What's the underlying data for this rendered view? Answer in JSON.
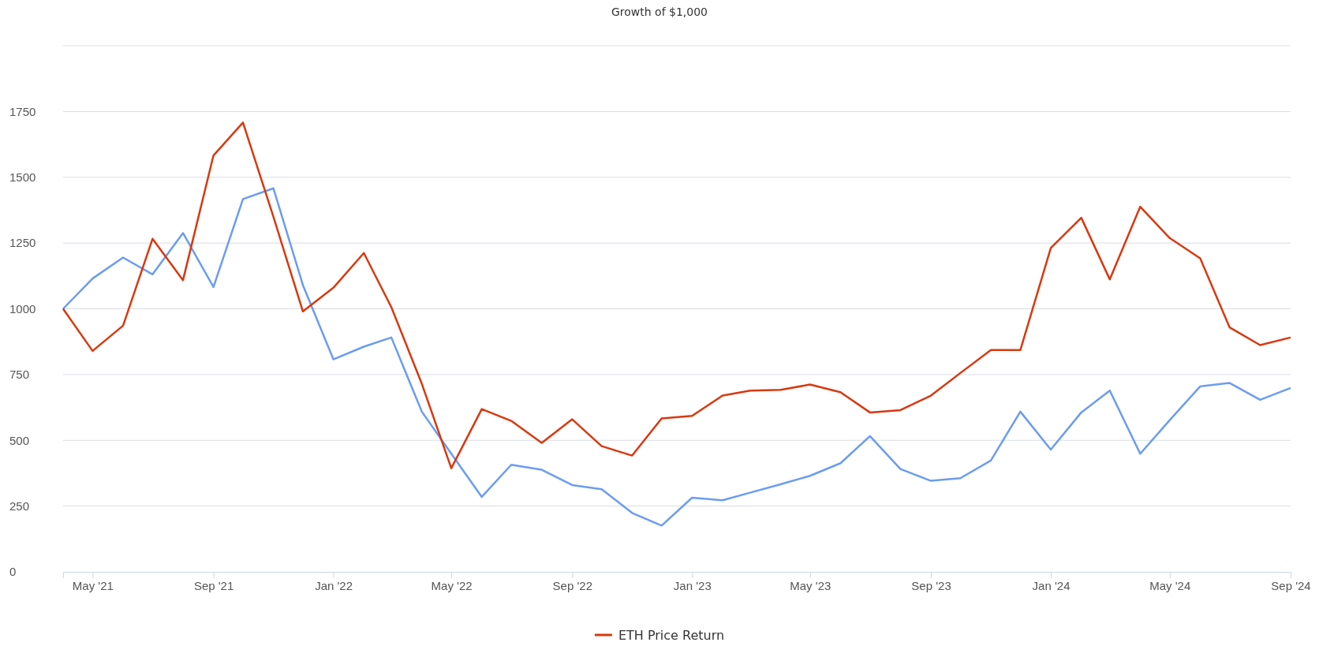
{
  "chart_data": {
    "type": "line",
    "title": "Growth of $1,000",
    "x": [
      "2021-04",
      "2021-05",
      "2021-06",
      "2021-07",
      "2021-08",
      "2021-09",
      "2021-10",
      "2021-11",
      "2021-12",
      "2022-01",
      "2022-02",
      "2022-03",
      "2022-04",
      "2022-05",
      "2022-06",
      "2022-07",
      "2022-08",
      "2022-09",
      "2022-10",
      "2022-11",
      "2022-12",
      "2023-01",
      "2023-02",
      "2023-03",
      "2023-04",
      "2023-05",
      "2023-06",
      "2023-07",
      "2023-08",
      "2023-09",
      "2023-10",
      "2023-11",
      "2023-12",
      "2024-01",
      "2024-02",
      "2024-03",
      "2024-04",
      "2024-05",
      "2024-06",
      "2024-07",
      "2024-08",
      "2024-09"
    ],
    "series": [
      {
        "color": "#6b9cf0",
        "values": [
          1000,
          1115,
          1195,
          1131,
          1288,
          1083,
          1417,
          1458,
          1090,
          808,
          856,
          891,
          609,
          449,
          285,
          407,
          388,
          330,
          314,
          224,
          176,
          282,
          272,
          301,
          333,
          365,
          413,
          516,
          391,
          346,
          356,
          423,
          609,
          465,
          606,
          689,
          449,
          577,
          705,
          718,
          654,
          699
        ]
      },
      {
        "name": "ETH Price Return",
        "color": "#d9380f",
        "values": [
          1000,
          840,
          936,
          1266,
          1109,
          1583,
          1708,
          1350,
          990,
          1080,
          1212,
          1006,
          715,
          394,
          619,
          574,
          490,
          580,
          478,
          442,
          583,
          593,
          670,
          689,
          692,
          712,
          683,
          606,
          615,
          670,
          756,
          843,
          843,
          1231,
          1346,
          1112,
          1388,
          1269,
          1192,
          929,
          862,
          891
        ]
      }
    ],
    "xlim": [
      "2021-04",
      "2024-09"
    ],
    "xticks": [
      {
        "value": "2021-05",
        "label": "May '21"
      },
      {
        "value": "2021-09",
        "label": "Sep '21"
      },
      {
        "value": "2022-01",
        "label": "Jan '22"
      },
      {
        "value": "2022-05",
        "label": "May '22"
      },
      {
        "value": "2022-09",
        "label": "Sep '22"
      },
      {
        "value": "2023-01",
        "label": "Jan '23"
      },
      {
        "value": "2023-05",
        "label": "May '23"
      },
      {
        "value": "2023-09",
        "label": "Sep '23"
      },
      {
        "value": "2024-01",
        "label": "Jan '24"
      },
      {
        "value": "2024-05",
        "label": "May '24"
      },
      {
        "value": "2024-09",
        "label": "Sep '24"
      }
    ],
    "ylim": [
      0,
      2000
    ],
    "yticks": [
      0,
      250,
      500,
      750,
      1000,
      1250,
      1500,
      1750,
      {
        "value": 2000,
        "label": null
      }
    ],
    "grid": "y",
    "legend": "bottom",
    "marker": "none",
    "line_style": "solid"
  }
}
